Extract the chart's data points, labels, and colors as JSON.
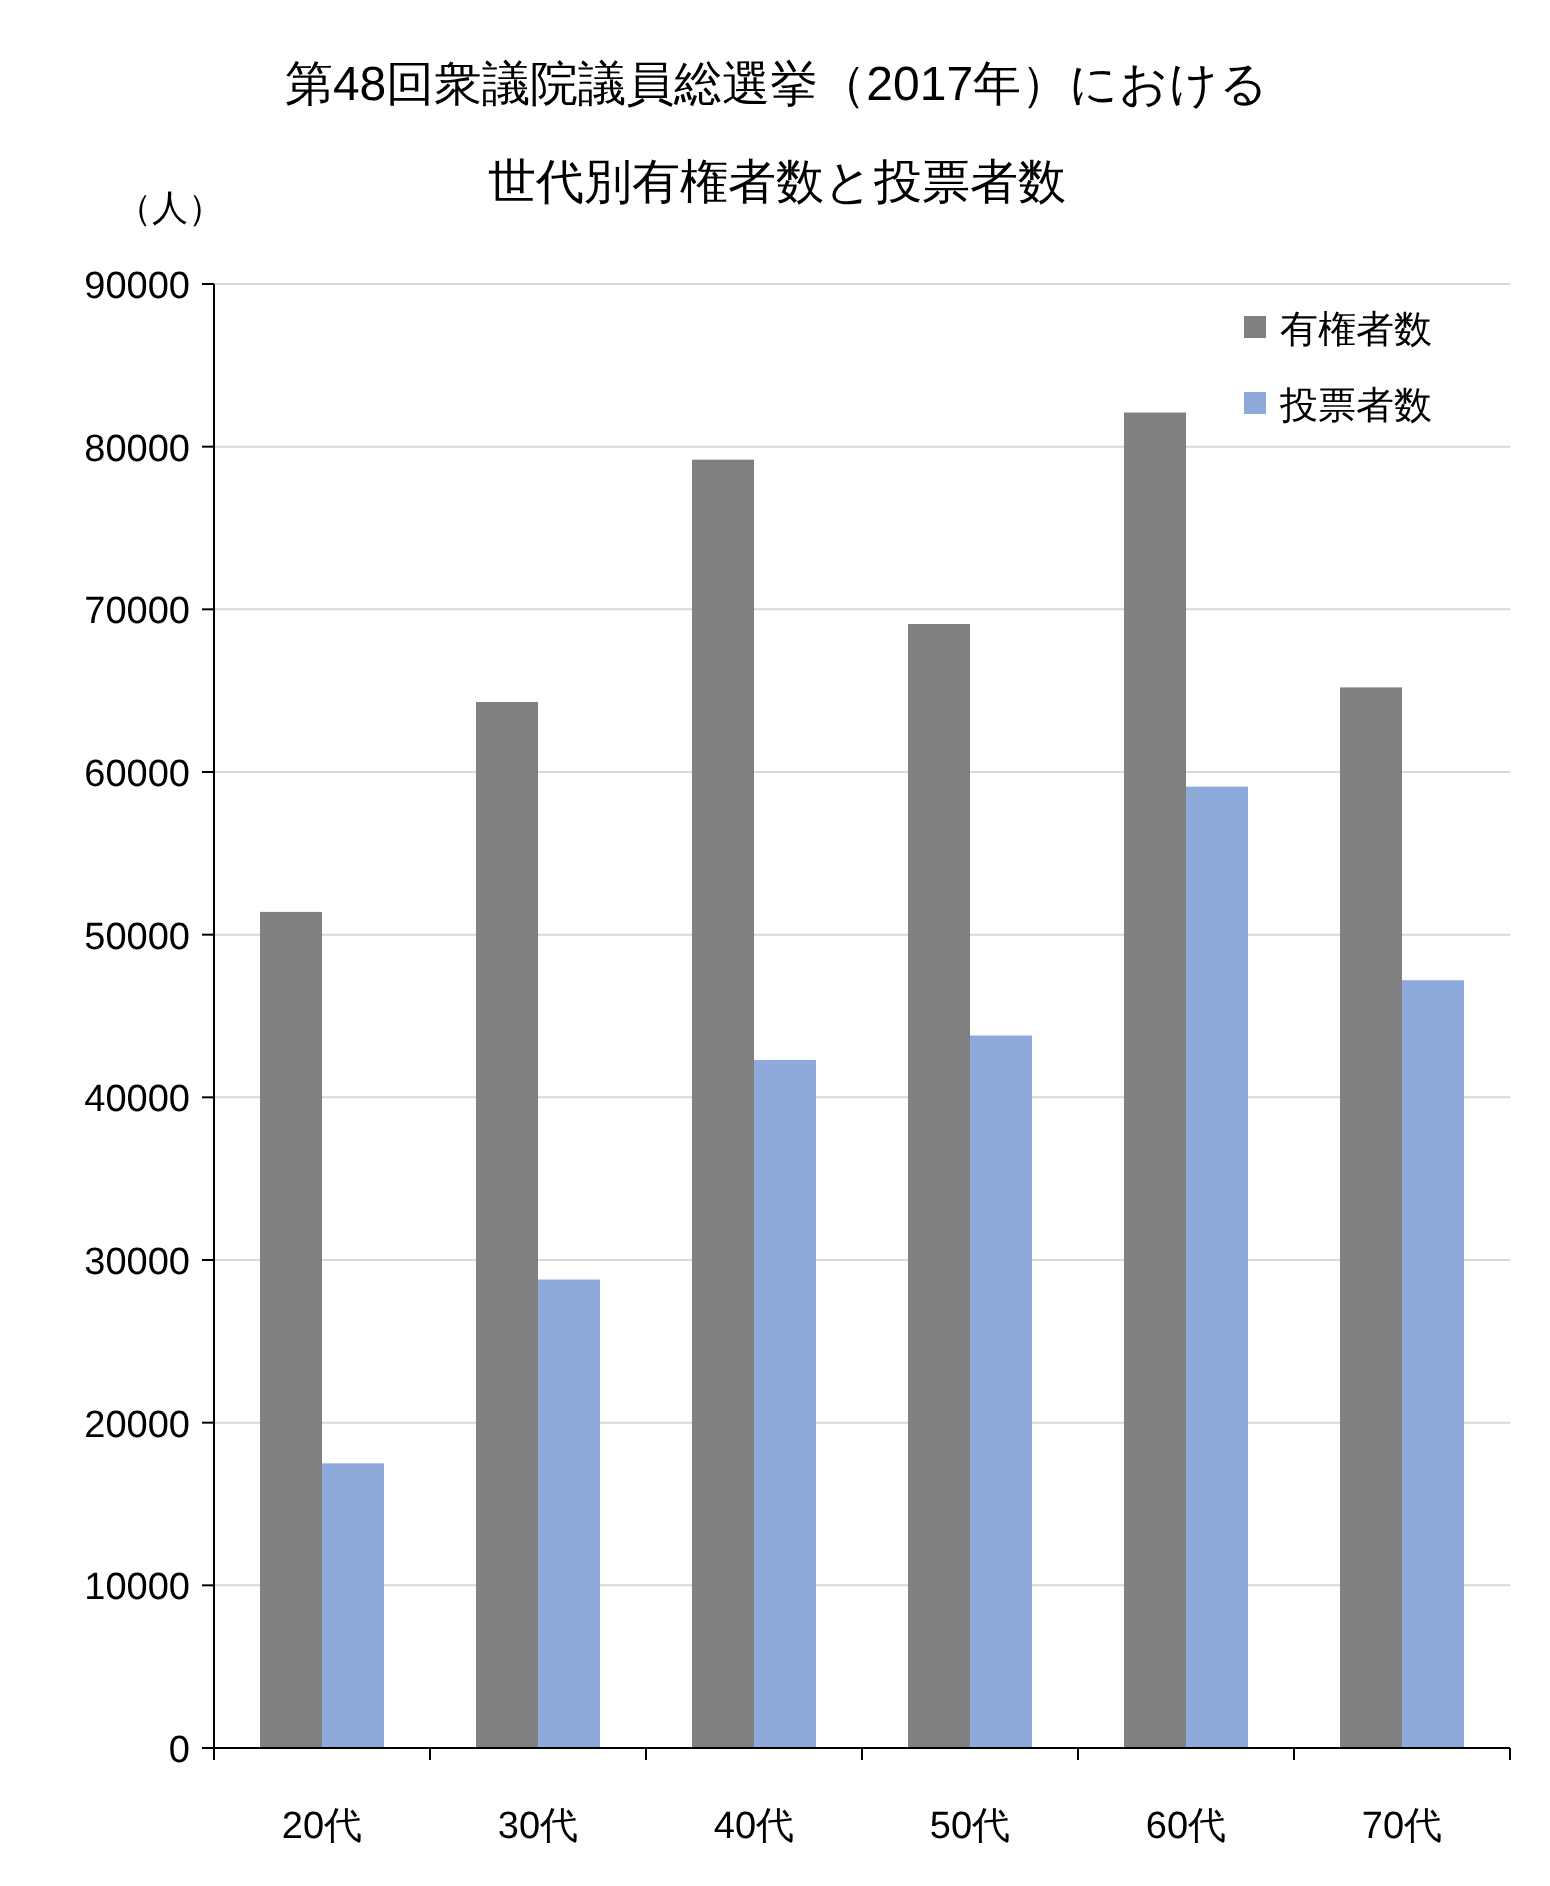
{
  "chart_data": {
    "type": "bar",
    "title": "第48回衆議院議員総選挙（2017年）における",
    "subtitle": "世代別有権者数と投票者数",
    "ylabel": "（人）",
    "categories": [
      "20代",
      "30代",
      "40代",
      "50代",
      "60代",
      "70代"
    ],
    "series": [
      {
        "name": "有権者数",
        "color": "#808080",
        "values": [
          51400,
          64300,
          79200,
          69100,
          82100,
          65200
        ]
      },
      {
        "name": "投票者数",
        "color": "#8eaadb",
        "values": [
          17500,
          28800,
          42300,
          43800,
          59100,
          47200
        ]
      }
    ],
    "ylim": [
      0,
      90000
    ],
    "yticks": [
      0,
      10000,
      20000,
      30000,
      40000,
      50000,
      60000,
      70000,
      80000,
      90000
    ],
    "grid": "y",
    "legend": "top right"
  }
}
